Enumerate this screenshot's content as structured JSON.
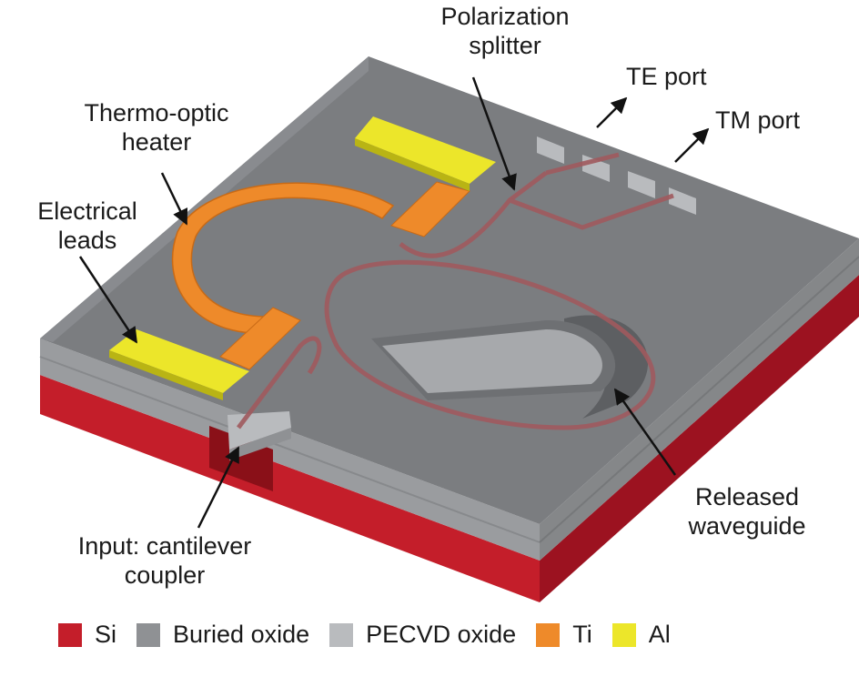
{
  "labels": {
    "polarization_splitter": [
      "Polarization",
      "splitter"
    ],
    "te_port": "TE port",
    "tm_port": "TM port",
    "thermo_optic_heater": [
      "Thermo-optic",
      "heater"
    ],
    "electrical_leads": [
      "Electrical",
      "leads"
    ],
    "released_waveguide": [
      "Released",
      "waveguide"
    ],
    "input_coupler": [
      "Input: cantilever",
      "coupler"
    ]
  },
  "legend": [
    {
      "label": "Si",
      "color": "#c41e2a"
    },
    {
      "label": "Buried oxide",
      "color": "#8f9194"
    },
    {
      "label": "PECVD oxide",
      "color": "#b9bbbe"
    },
    {
      "label": "Ti",
      "color": "#ee8a2a"
    },
    {
      "label": "Al",
      "color": "#ece62a"
    }
  ],
  "colors": {
    "si_front": "#c41e2a",
    "si_side": "#9c1220",
    "oxide_top": "#7b7d80",
    "oxide_side": "#9a9c9f",
    "pecvd": "#b9bbbe",
    "ti": "#ee8a2a",
    "al": "#ece62a",
    "waveguide": "#a05a5e",
    "arrow": "#111111"
  }
}
